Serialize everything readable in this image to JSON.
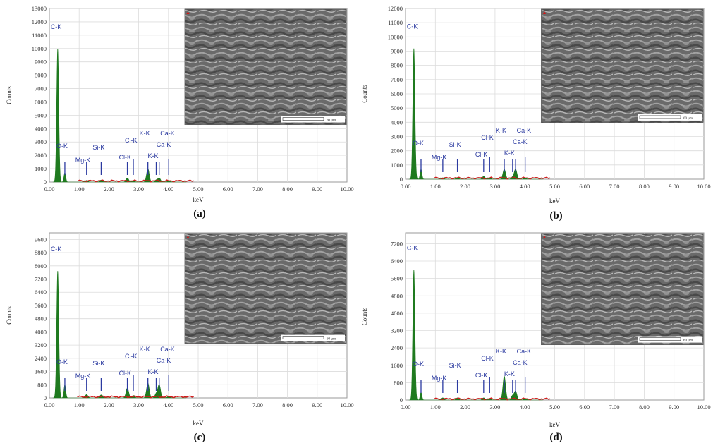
{
  "chart_data": [
    {
      "type": "area",
      "caption": "(a)",
      "xlabel": "keV",
      "ylabel": "Counts",
      "xlim": [
        0,
        10
      ],
      "ylim": [
        0,
        13000
      ],
      "x_ticks": [
        "0.00",
        "1.00",
        "2.00",
        "3.00",
        "4.00",
        "5.00",
        "6.00",
        "7.00",
        "8.00",
        "9.00",
        "10.00"
      ],
      "y_ticks": [
        "0",
        "1000",
        "2000",
        "3000",
        "4000",
        "5000",
        "6000",
        "7000",
        "8000",
        "9000",
        "10000",
        "11000",
        "12000",
        "13000"
      ],
      "peaks": [
        {
          "label": "C-K",
          "x": 0.28,
          "y": 10000
        },
        {
          "label": "O-K",
          "x": 0.52,
          "y": 700
        },
        {
          "label": "Mg-K",
          "x": 1.25,
          "y": 120
        },
        {
          "label": "Si-K",
          "x": 1.74,
          "y": 150
        },
        {
          "label": "Cl-K",
          "x": 2.62,
          "y": 300
        },
        {
          "label": "Cl-K",
          "x": 2.82,
          "y": 120
        },
        {
          "label": "K-K",
          "x": 3.31,
          "y": 1000
        },
        {
          "label": "K-K",
          "x": 3.59,
          "y": 150
        },
        {
          "label": "Ca-K",
          "x": 3.69,
          "y": 300
        },
        {
          "label": "Ca-K",
          "x": 4.01,
          "y": 80
        }
      ],
      "scale_bar": "60 µm",
      "grid": true
    },
    {
      "type": "area",
      "caption": "(b)",
      "xlabel": "keV",
      "ylabel": "Counts",
      "xlim": [
        0,
        10
      ],
      "ylim": [
        0,
        12000
      ],
      "x_ticks": [
        "0.00",
        "1.00",
        "2.00",
        "3.00",
        "4.00",
        "5.00",
        "6.00",
        "7.00",
        "8.00",
        "9.00",
        "10.00"
      ],
      "y_ticks": [
        "0",
        "1000",
        "2000",
        "3000",
        "4000",
        "5000",
        "6000",
        "7000",
        "8000",
        "9000",
        "10000",
        "11000",
        "12000"
      ],
      "peaks": [
        {
          "label": "C-K",
          "x": 0.28,
          "y": 9200
        },
        {
          "label": "O-K",
          "x": 0.52,
          "y": 700
        },
        {
          "label": "Mg-K",
          "x": 1.25,
          "y": 100
        },
        {
          "label": "Si-K",
          "x": 1.74,
          "y": 120
        },
        {
          "label": "Cl-K",
          "x": 2.62,
          "y": 200
        },
        {
          "label": "Cl-K",
          "x": 2.82,
          "y": 100
        },
        {
          "label": "K-K",
          "x": 3.31,
          "y": 700
        },
        {
          "label": "K-K",
          "x": 3.59,
          "y": 150
        },
        {
          "label": "Ca-K",
          "x": 3.69,
          "y": 700
        },
        {
          "label": "Ca-K",
          "x": 4.01,
          "y": 80
        }
      ],
      "scale_bar": "60 µm",
      "grid": true
    },
    {
      "type": "area",
      "caption": "(c)",
      "xlabel": "keV",
      "ylabel": "Counts",
      "xlim": [
        0,
        10
      ],
      "ylim": [
        0,
        10000
      ],
      "x_ticks": [
        "0.00",
        "1.00",
        "2.00",
        "3.00",
        "4.00",
        "5.00",
        "6.00",
        "7.00",
        "8.00",
        "9.00",
        "10.00"
      ],
      "y_ticks": [
        "0",
        "800",
        "1600",
        "2400",
        "3200",
        "4000",
        "4800",
        "5600",
        "6400",
        "7200",
        "8000",
        "8800",
        "9600"
      ],
      "peaks": [
        {
          "label": "C-K",
          "x": 0.28,
          "y": 7700
        },
        {
          "label": "O-K",
          "x": 0.52,
          "y": 800
        },
        {
          "label": "Mg-K",
          "x": 1.25,
          "y": 200
        },
        {
          "label": "Si-K",
          "x": 1.74,
          "y": 180
        },
        {
          "label": "Cl-K",
          "x": 2.62,
          "y": 600
        },
        {
          "label": "Cl-K",
          "x": 2.82,
          "y": 150
        },
        {
          "label": "K-K",
          "x": 3.31,
          "y": 900
        },
        {
          "label": "K-K",
          "x": 3.59,
          "y": 250
        },
        {
          "label": "Ca-K",
          "x": 3.69,
          "y": 800
        },
        {
          "label": "Ca-K",
          "x": 4.01,
          "y": 100
        }
      ],
      "scale_bar": "60 µm",
      "grid": true
    },
    {
      "type": "area",
      "caption": "(d)",
      "xlabel": "keV",
      "ylabel": "Counts",
      "xlim": [
        0,
        10
      ],
      "ylim": [
        0,
        7700
      ],
      "x_ticks": [
        "0.00",
        "1.00",
        "2.00",
        "3.00",
        "4.00",
        "5.00",
        "6.00",
        "7.00",
        "8.00",
        "9.00",
        "10.00"
      ],
      "y_ticks": [
        "0",
        "800",
        "1600",
        "2400",
        "3200",
        "4000",
        "4800",
        "5600",
        "6400",
        "7200"
      ],
      "peaks": [
        {
          "label": "C-K",
          "x": 0.28,
          "y": 6000
        },
        {
          "label": "O-K",
          "x": 0.52,
          "y": 350
        },
        {
          "label": "Mg-K",
          "x": 1.25,
          "y": 100
        },
        {
          "label": "Si-K",
          "x": 1.74,
          "y": 100
        },
        {
          "label": "Cl-K",
          "x": 2.62,
          "y": 100
        },
        {
          "label": "Cl-K",
          "x": 2.82,
          "y": 80
        },
        {
          "label": "K-K",
          "x": 3.31,
          "y": 1100
        },
        {
          "label": "K-K",
          "x": 3.59,
          "y": 200
        },
        {
          "label": "Ca-K",
          "x": 3.69,
          "y": 400
        },
        {
          "label": "Ca-K",
          "x": 4.01,
          "y": 80
        }
      ],
      "scale_bar": "60 µm",
      "grid": true
    }
  ],
  "colors": {
    "spectrum": "#1f7a1f",
    "baseline": "#d11a1a",
    "marker": "#2b3aa0",
    "grid": "#dcdcdc",
    "sem_bg": "#6a6a6a"
  }
}
